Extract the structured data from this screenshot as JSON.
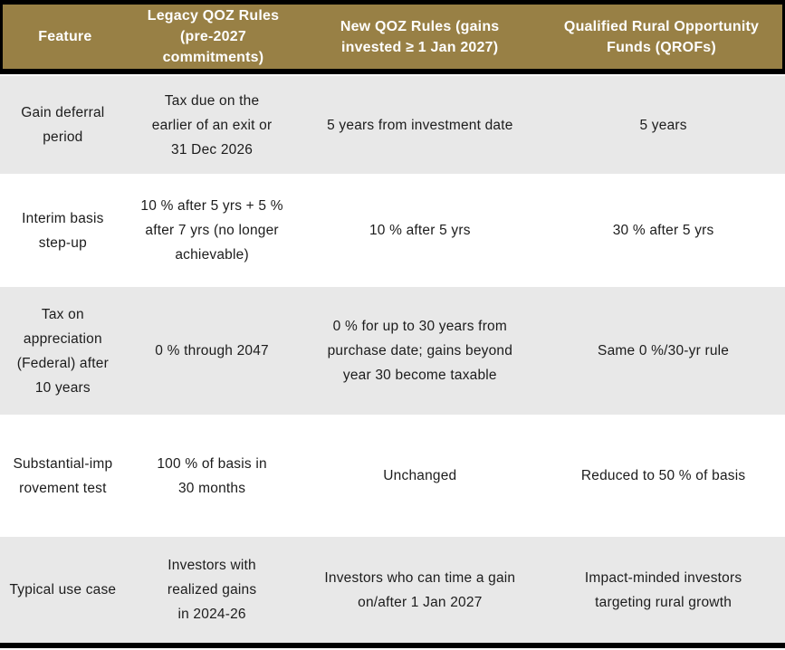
{
  "table": {
    "header": {
      "feature": "Feature",
      "legacy": "Legacy QOZ Rules\n(pre-2027\ncommitments)",
      "new": "New QOZ Rules (gains\ninvested ≥ 1 Jan 2027)",
      "qrof": "Qualified Rural Opportunity\nFunds (QROFs)"
    },
    "rows": [
      {
        "feature": "Gain deferral\nperiod",
        "legacy": "Tax due on the\nearlier of an exit or\n31 Dec 2026",
        "new": "5 years from investment date",
        "qrof": "5 years"
      },
      {
        "feature": "Interim basis\nstep-up",
        "legacy": "10 % after 5 yrs + 5 %\nafter 7 yrs (no longer\nachievable)",
        "new": "10 % after 5 yrs",
        "qrof": "30 % after 5 yrs"
      },
      {
        "feature": "Tax on\nappreciation\n(Federal) after\n10 years",
        "legacy": "0 % through 2047",
        "new": "0 % for up to 30 years from\npurchase date; gains beyond\nyear 30 become taxable",
        "qrof": "Same 0 %/30-yr rule"
      },
      {
        "feature": "Substantial-imp\nrovement test",
        "legacy": "100 % of basis in\n30 months",
        "new": "Unchanged",
        "qrof": "Reduced to 50 % of basis"
      },
      {
        "feature": "Typical use case",
        "legacy": "Investors with\nrealized gains\nin 2024-26",
        "new": "Investors who can time a gain\non/after 1 Jan 2027",
        "qrof": "Impact-minded investors\ntargeting rural growth"
      }
    ]
  },
  "colors": {
    "header_bg": "#988045",
    "header_text": "#ffffff",
    "border": "#000000",
    "row_alt_bg": "#e8e8e8",
    "row_bg": "#ffffff",
    "body_text": "#1c1c1c"
  }
}
